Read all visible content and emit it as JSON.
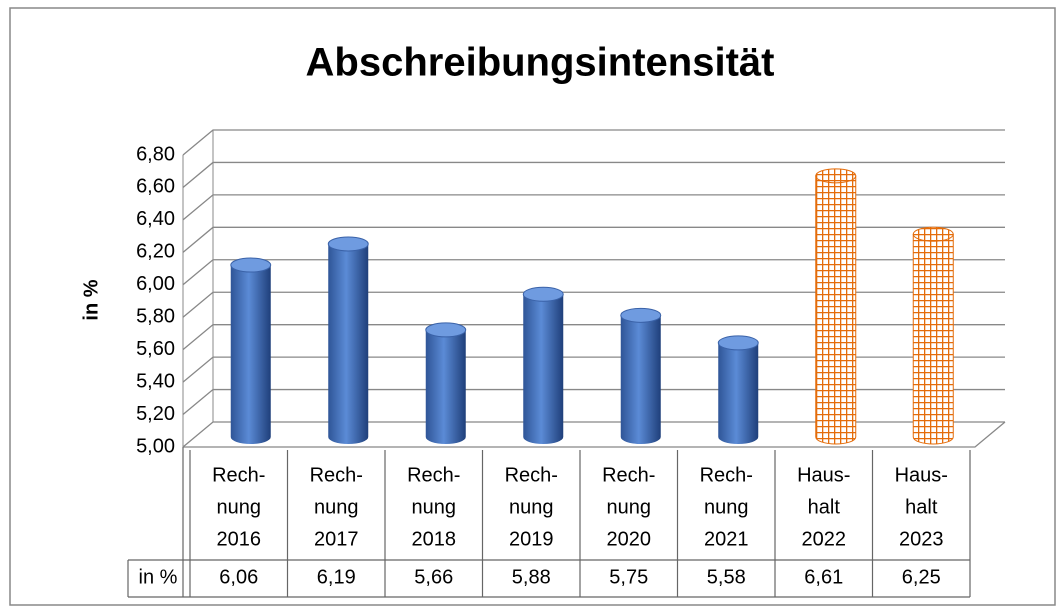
{
  "chart_data": {
    "type": "bar3d",
    "title": "Abschreibungsintensität",
    "y_label": "in %",
    "table_row_label": "in %",
    "categories": [
      [
        "Rech-",
        "nung",
        "2016"
      ],
      [
        "Rech-",
        "nung",
        "2017"
      ],
      [
        "Rech-",
        "nung",
        "2018"
      ],
      [
        "Rech-",
        "nung",
        "2019"
      ],
      [
        "Rech-",
        "nung",
        "2020"
      ],
      [
        "Rech-",
        "nung",
        "2021"
      ],
      [
        "Haus-",
        "halt",
        "2022"
      ],
      [
        "Haus-",
        "halt",
        "2023"
      ]
    ],
    "values": [
      6.06,
      6.19,
      5.66,
      5.88,
      5.75,
      5.58,
      6.61,
      6.25
    ],
    "value_labels": [
      "6,06",
      "6,19",
      "5,66",
      "5,88",
      "5,75",
      "5,58",
      "6,61",
      "6,25"
    ],
    "colors": [
      "#4472c4",
      "#4472c4",
      "#4472c4",
      "#4472c4",
      "#4472c4",
      "#4472c4",
      "#e46c0a",
      "#e46c0a"
    ],
    "hatch": [
      false,
      false,
      false,
      false,
      false,
      false,
      true,
      true
    ],
    "ylim": [
      5.0,
      6.8
    ],
    "yticks": [
      {
        "value": 5.0,
        "label": "5,00"
      },
      {
        "value": 5.2,
        "label": "5,20"
      },
      {
        "value": 5.4,
        "label": "5,40"
      },
      {
        "value": 5.6,
        "label": "5,60"
      },
      {
        "value": 5.8,
        "label": "5,80"
      },
      {
        "value": 6.0,
        "label": "6,00"
      },
      {
        "value": 6.2,
        "label": "6,20"
      },
      {
        "value": 6.4,
        "label": "6,40"
      },
      {
        "value": 6.6,
        "label": "6,60"
      },
      {
        "value": 6.8,
        "label": "6,80"
      }
    ],
    "grid": true
  }
}
